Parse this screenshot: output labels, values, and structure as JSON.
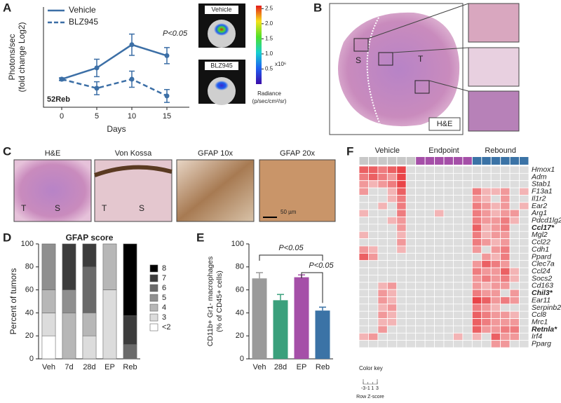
{
  "panel_letters": [
    "A",
    "B",
    "C",
    "D",
    "E",
    "F"
  ],
  "images": {
    "a_insets": [
      "Vehicle",
      "BLZ945"
    ],
    "colorbar": {
      "lim": [
        0,
        2.6
      ],
      "ticks": [
        0.5,
        {
          "value": 1,
          "label": "1.0"
        },
        1.5,
        {
          "value": 2,
          "label": "2.0"
        },
        2.5
      ],
      "unit": "x10⁶",
      "label": [
        "Radiance",
        "(p/sec/cm²/sr)"
      ]
    },
    "b_labels": {
      "s": "S",
      "t": "T",
      "stain": "H&E"
    },
    "c_titles": [
      "H&E",
      "Von Kossa",
      "GFAP 10x",
      "GFAP 20x"
    ],
    "c_labels": [
      "T",
      "S",
      "T",
      "S"
    ],
    "c_scale": "50 µm"
  },
  "chart_data": [
    {
      "type": "line",
      "xlabel": "Days",
      "ylabel": [
        "Photons/sec",
        "(fold change Log2)"
      ],
      "x": [
        0,
        5,
        10,
        15
      ],
      "xlim": [
        -2.6,
        18.2
      ],
      "xticks": [
        0,
        5,
        10,
        15
      ],
      "ylim": [
        -0.87,
        2.24
      ],
      "series": [
        {
          "name": "Vehicle",
          "color": "#3c6fa6",
          "dash": false,
          "values": [
            0,
            0.35,
            1.07,
            0.73
          ],
          "errors": [
            0.04,
            0.27,
            0.33,
            0.25
          ]
        },
        {
          "name": "BLZ945",
          "color": "#3c6fa6",
          "dash": true,
          "values": [
            0,
            -0.28,
            0,
            -0.52
          ],
          "errors": [
            0.04,
            0.2,
            0.25,
            0.2
          ]
        }
      ],
      "annotations": [
        "P<0.05",
        "52Reb"
      ]
    },
    {
      "type": "stacked-bar",
      "title": "GFAP score",
      "ylabel": "Percent of tumors",
      "categories": [
        "Veh",
        "7d",
        "28d",
        "EP",
        "Reb"
      ],
      "ylim": [
        0,
        100
      ],
      "yticks": [
        0,
        20,
        40,
        60,
        80,
        100
      ],
      "series": [
        {
          "name": "<2",
          "color": "#ffffff",
          "values": [
            20,
            0,
            0,
            0,
            0
          ]
        },
        {
          "name": "3",
          "color": "#dcdcdc",
          "values": [
            20,
            0,
            20,
            60,
            0
          ]
        },
        {
          "name": "4",
          "color": "#b7b7b7",
          "values": [
            20,
            40,
            20,
            40,
            0
          ]
        },
        {
          "name": "5",
          "color": "#8f8f8f",
          "values": [
            40,
            20,
            0,
            0,
            0
          ]
        },
        {
          "name": "6",
          "color": "#6a6a6a",
          "values": [
            0,
            0,
            40,
            0,
            12.5
          ]
        },
        {
          "name": "7",
          "color": "#3c3c3c",
          "values": [
            0,
            40,
            20,
            0,
            25
          ]
        },
        {
          "name": "8",
          "color": "#000000",
          "values": [
            0,
            0,
            0,
            0,
            62.5
          ]
        }
      ]
    },
    {
      "type": "bar",
      "ylabel": [
        "CD11b+ Gr1- macrophages",
        "(% of CD45+ cells)"
      ],
      "categories": [
        "Veh",
        "28d",
        "EP",
        "Reb"
      ],
      "values": [
        70,
        51,
        71,
        42
      ],
      "errors": [
        5,
        5,
        2,
        3
      ],
      "colors": [
        "#9a9a9a",
        "#3aa07c",
        "#a54fa8",
        "#3b73a6"
      ],
      "ylim": [
        0,
        100
      ],
      "yticks": [
        0,
        20,
        40,
        60,
        80,
        100
      ],
      "annotations": [
        "P<0.05",
        "P<0.05"
      ]
    },
    {
      "type": "heatmap",
      "groups": [
        {
          "name": "Vehicle",
          "color": "#c8c8c8",
          "n": 6
        },
        {
          "name": "Endpoint",
          "color": "#a54fa8",
          "n": 6
        },
        {
          "name": "Rebound",
          "color": "#3b73a6",
          "n": 6
        }
      ],
      "rows": [
        "Hmox1",
        "Adm",
        "Stab1",
        "F13a1",
        "Il1r2",
        "Ear2",
        "Arg1",
        "Pdcd1lg2",
        "Ccl17*",
        "Mgl2",
        "Ccl22",
        "Cdh1",
        "Ppard",
        "Clec7a",
        "Ccl24",
        "Socs2",
        "Cd163",
        "Chil3*",
        "Ear11",
        "Serpinb2",
        "Ccl8",
        "Mrc1",
        "Retnla*",
        "Irf4",
        "Pparg"
      ],
      "bold_rows": [
        8,
        17,
        22
      ],
      "values": [
        [
          2,
          2,
          1.5,
          2,
          2.5,
          -1,
          -1,
          -1,
          -1,
          -1,
          -1,
          -1,
          -1,
          -1,
          -1,
          -1,
          -1,
          -1
        ],
        [
          1.5,
          2,
          1.5,
          1,
          2.5,
          -1,
          -1,
          -1,
          -1,
          -1,
          -1,
          -1,
          -1,
          -1,
          -1,
          -1,
          -1,
          -1
        ],
        [
          1,
          0.5,
          1,
          1.5,
          2.5,
          -1,
          -1,
          -1,
          -1,
          -1,
          -1,
          -1,
          -1,
          -1,
          -1,
          -1,
          -1,
          -1
        ],
        [
          1,
          -1,
          -1,
          0.5,
          2,
          -1,
          -1,
          -1,
          -1,
          -1,
          -1,
          -1,
          1.5,
          0.5,
          0.5,
          1,
          -1,
          0.5
        ],
        [
          -1,
          -1,
          -1,
          0.5,
          1.5,
          -1,
          -1,
          -1,
          -1,
          -1,
          -1,
          -1,
          1,
          0.5,
          -1,
          1,
          -1,
          -1
        ],
        [
          -1,
          -1,
          0.5,
          -1,
          1.5,
          -1,
          -1,
          -1,
          -1,
          -1,
          -1,
          -1,
          1.5,
          1,
          0.5,
          1,
          -1,
          0.5
        ],
        [
          0.5,
          -1,
          -1,
          -1,
          1.5,
          -1,
          -1,
          -1,
          0.5,
          -1,
          -1,
          -1,
          1.5,
          1,
          0.5,
          1,
          1,
          -1
        ],
        [
          -1,
          -1,
          -1,
          0.5,
          1,
          -1,
          -1,
          -1,
          -1,
          -1,
          -1,
          -1,
          1.5,
          1,
          1,
          1.5,
          0.5,
          -1
        ],
        [
          -1,
          -1,
          -1,
          -1,
          1,
          -1,
          -1,
          -1,
          -1,
          -1,
          -1,
          -1,
          2,
          0.5,
          1,
          1.5,
          -1,
          -1
        ],
        [
          0.5,
          -1,
          -1,
          -1,
          0.5,
          -1,
          -1,
          -1,
          -1,
          -1,
          -1,
          -1,
          1.5,
          0.5,
          1,
          1,
          -1,
          -1
        ],
        [
          -1,
          -1,
          -1,
          -1,
          1,
          -1,
          -1,
          -1,
          -1,
          -1,
          -1,
          -1,
          1.5,
          1,
          0.5,
          1,
          -1,
          -1
        ],
        [
          1,
          0.5,
          -1,
          -1,
          0.5,
          -1,
          -1,
          -1,
          -1,
          -1,
          -1,
          -1,
          1,
          -1,
          1,
          1.5,
          -1,
          -1
        ],
        [
          2,
          1,
          -1,
          -1,
          -1,
          -1,
          -1,
          -1,
          -1,
          -1,
          -1,
          -1,
          -1,
          1,
          0.5,
          1.5,
          -1,
          -1
        ],
        [
          -1,
          -1,
          -1,
          -1,
          -1,
          -1,
          -1,
          -1,
          -1,
          -1,
          -1,
          -1,
          1,
          2,
          1.5,
          1,
          -1,
          -1
        ],
        [
          -1,
          -1,
          -1,
          -1,
          -1,
          -1,
          -1,
          -1,
          -1,
          -1,
          -1,
          -1,
          1.5,
          1,
          1,
          2,
          0.5,
          -1
        ],
        [
          -1,
          -1,
          -1,
          -1,
          -1,
          -1,
          -1,
          -1,
          -1,
          -1,
          -1,
          -1,
          1,
          1.5,
          1,
          1.5,
          0.5,
          -1
        ],
        [
          -1,
          -1,
          0.5,
          1,
          -1,
          -1,
          -1,
          -1,
          -1,
          -1,
          -1,
          -1,
          1,
          0.5,
          1,
          1,
          -1,
          -1
        ],
        [
          -1,
          -1,
          1,
          0.5,
          -1,
          -1,
          -1,
          -1,
          -1,
          -1,
          -1,
          -1,
          1.5,
          1,
          1,
          -1,
          1,
          -1
        ],
        [
          -1,
          -1,
          1,
          0.5,
          -1,
          -1,
          -1,
          -1,
          -1,
          -1,
          -1,
          -1,
          2.5,
          2,
          1,
          1.5,
          1,
          -1
        ],
        [
          -1,
          -1,
          0.5,
          1,
          -1,
          -1,
          -1,
          -1,
          -1,
          -1,
          -1,
          -1,
          1.5,
          1,
          0.5,
          -1,
          -1,
          -1
        ],
        [
          -1,
          -1,
          1,
          0.5,
          -1,
          -1,
          -1,
          -1,
          -1,
          -1,
          -1,
          -1,
          2,
          1.5,
          1,
          1,
          0.5,
          -1
        ],
        [
          -1,
          -1,
          0.5,
          0.5,
          -1,
          -1,
          -1,
          -1,
          -1,
          -1,
          -1,
          -1,
          2,
          1.5,
          1,
          1,
          1,
          -1
        ],
        [
          -1,
          -1,
          1,
          -1,
          -1,
          -1,
          -1,
          -1,
          -1,
          -1,
          -1,
          -1,
          2,
          1,
          1,
          1.5,
          1.5,
          -1
        ],
        [
          0.5,
          1,
          -1,
          -1,
          -1,
          -1,
          -1,
          -1,
          -1,
          -1,
          0.5,
          -1,
          0.5,
          -1,
          2,
          1,
          1,
          -1
        ],
        [
          -1,
          -1,
          -1,
          -1,
          -1,
          -1,
          -1,
          -1,
          -1,
          -1,
          -1,
          -1,
          -1,
          -1,
          1,
          1,
          -1,
          -1
        ]
      ],
      "vlim": [
        -3,
        3
      ],
      "color_key": {
        "title": "Color key",
        "ticks": [
          -3,
          -1,
          1,
          3
        ],
        "label": "Row Z-score"
      }
    }
  ]
}
